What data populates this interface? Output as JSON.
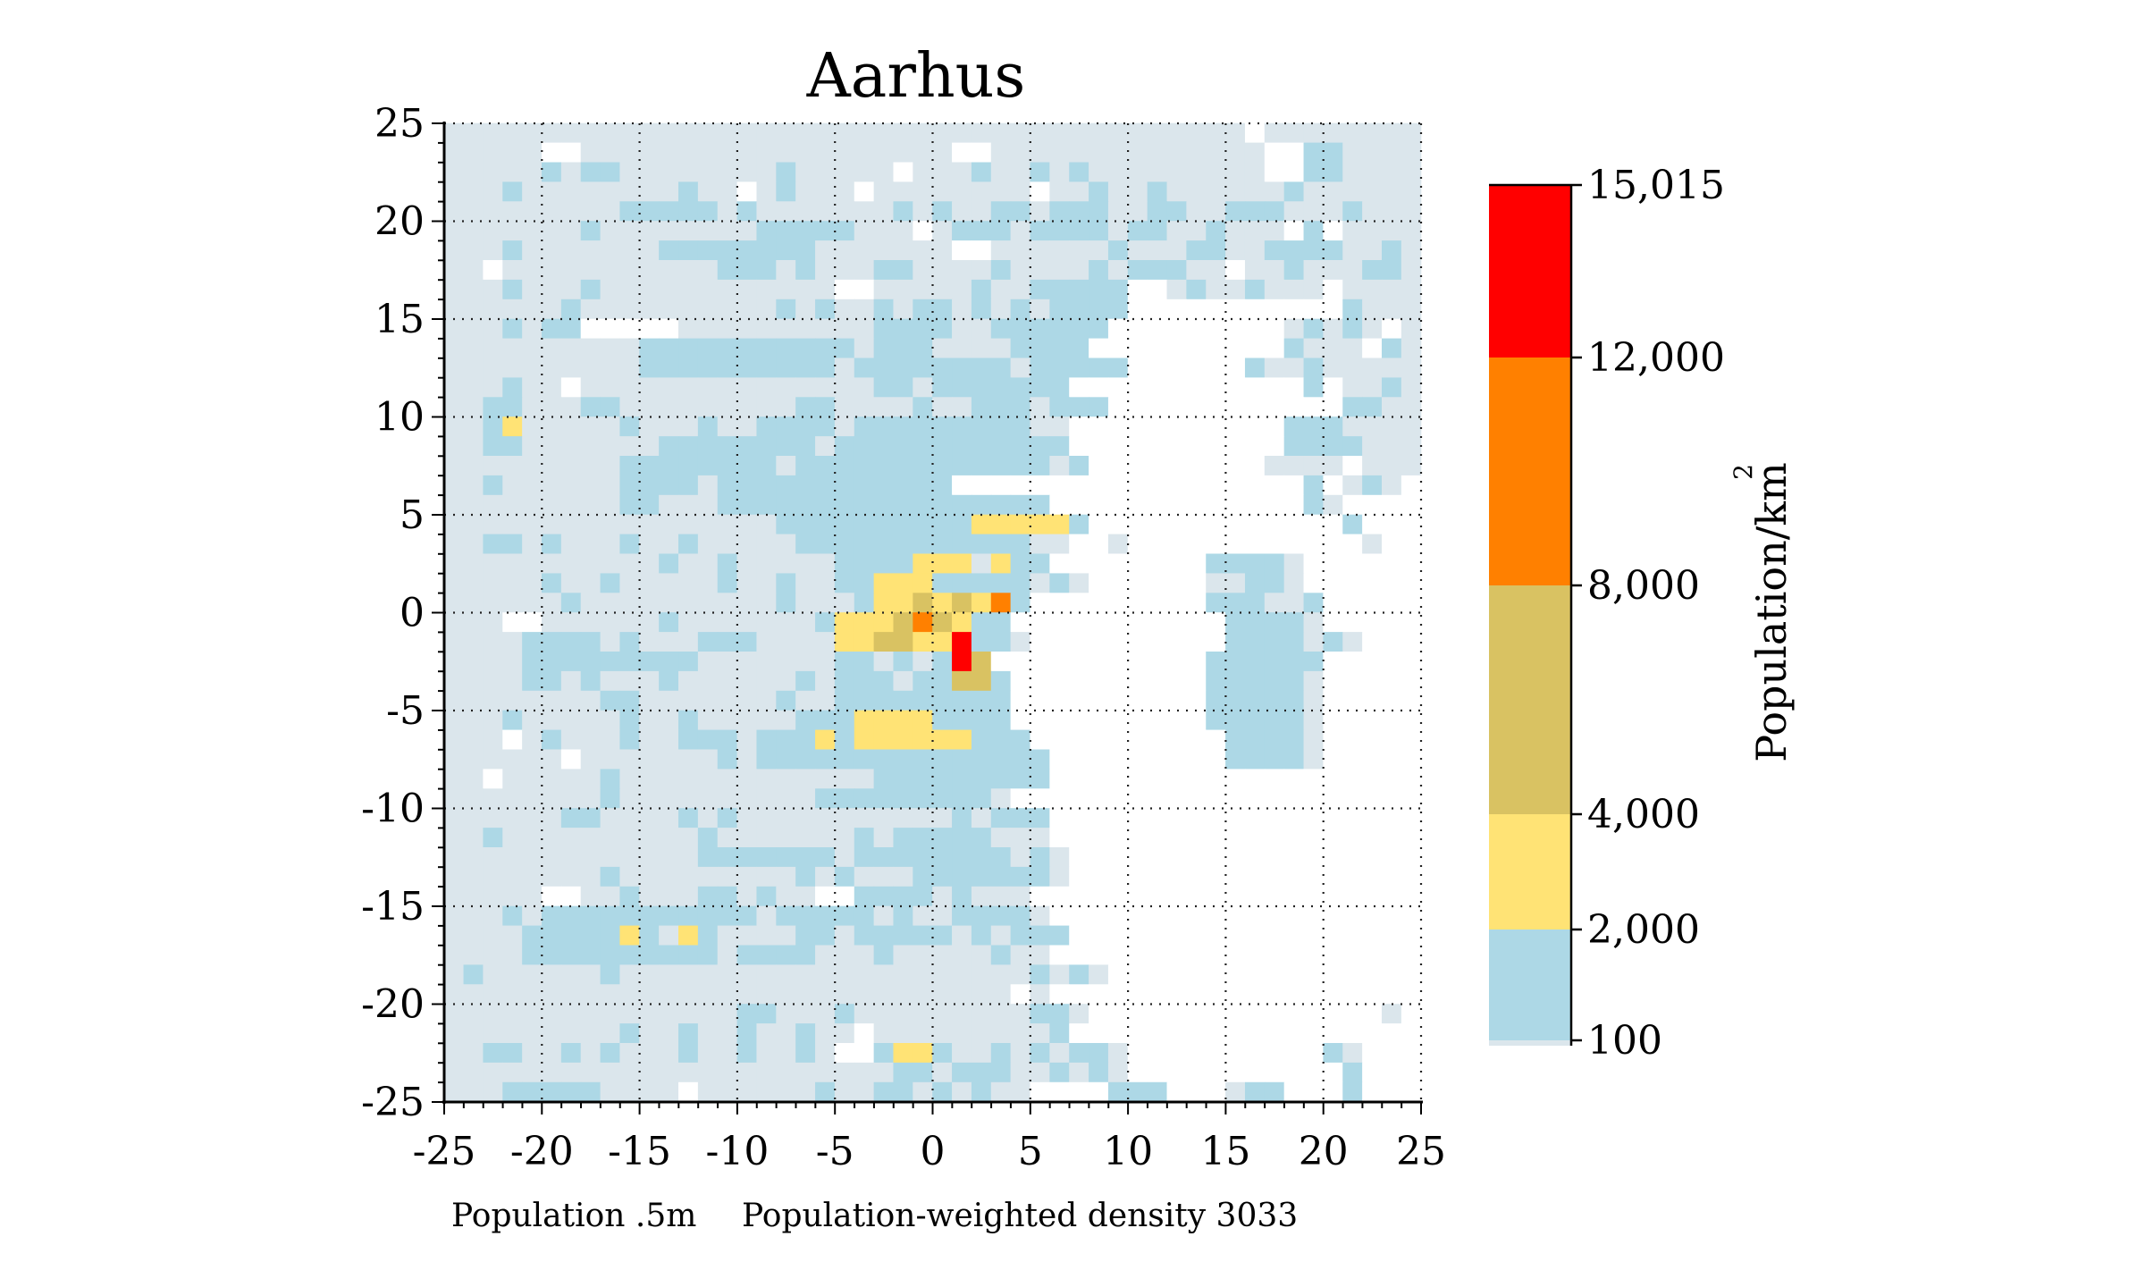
{
  "chart_data": {
    "type": "heatmap",
    "title": "Aarhus",
    "xlim": [
      -25,
      25
    ],
    "ylim": [
      -25,
      25
    ],
    "x_ticks": [
      "-25",
      "-20",
      "-15",
      "-10",
      "-5",
      "0",
      "5",
      "10",
      "15",
      "20",
      "25"
    ],
    "y_ticks": [
      "25",
      "20",
      "15",
      "10",
      "5",
      "0",
      "-5",
      "-10",
      "-15",
      "-20",
      "-25"
    ],
    "grid": "dotted",
    "cell_size_km": 1,
    "footnote_population": "Population .5m",
    "footnote_density": "Population-weighted density 3033",
    "colorbar": {
      "label": "Population/km",
      "label_superscript": "2",
      "tick_labels": [
        "15,015",
        "12,000",
        "8,000",
        "4,000",
        "2,000",
        "100"
      ],
      "bins": [
        {
          "from": 0,
          "to": 100,
          "color": "#dbe6ec"
        },
        {
          "from": 100,
          "to": 2000,
          "color": "#add8e6"
        },
        {
          "from": 2000,
          "to": 4000,
          "color": "#ffe375"
        },
        {
          "from": 4000,
          "to": 8000,
          "color": "#d9c262"
        },
        {
          "from": 8000,
          "to": 12000,
          "color": "#ff8000"
        },
        {
          "from": 12000,
          "to": 15015,
          "color": "#ff0000"
        }
      ]
    },
    "empty_color": "#ffffff",
    "cells": {
      "rows_from_y": 25,
      "cols_from_x": -25,
      "legend": {
        ".": "under 100",
        "b": "100-2,000",
        "y": "2,000-4,000",
        "t": "4,000-8,000",
        "o": "8,000-12,000",
        "r": "12,000-15,015",
        "_": "empty"
      },
      "grid": [
        "........................................._........",
        ".....__...................__..............__bb.....",
        ".....b.bb........b....._...b..b.b.........__bb.....",
        "...b........b.._.b..._........_..b..b......b.......",
        ".........bbbbb.b.......b.b..bb.bbb..bb..bbb...b....",
        ".......b........bbbbb..._.bbb.bbbb.bb..b..._b_.....",
        "...b.......bbbbbbbb.......__......b...bb..bbbb..b..",
        ".._...........bbb.b...bb....b....b.bbb.._..b...bb..",
        "...b...b............__.....b..bbbbb__.b..b..._.....",
        "......b..........b.b..b.bb.b.b.bbbb___________b...",
        "...b.bb_____..........bbbb..bbbbbb_________.b.b._..",
        "..........bbbbbbbbbbb.bbb....bbbb__________b..._b..",
        "..........bbbbbbbbbb.bbbbbbbb.bbbbb______b..b......",
        "...b.._...............bb.bbbbbbb____________b_..b..",
        "..bb...bb.........bb....b..bbb.bbb____________bb...",
        "..by.....b...b..bbbb.bbbbbbbbb..___________bbb.....",
        "..bb.......bbbbbbbb.bbbbbbbbbbbb___________bbbb....",
        ".........bbbbbbbb.bbbbbbbbbbbbb.b_________...._..._",
        "..b......bbbb.bbbbbbbbbbbb__________________b_.b.__",
        ".........bb...bbbbbbbbbbbbbbbbb_____________b._____",
        ".................bbbbbbbbbbyyyyyb_____________b____",
        "..bb.b...b..b.....bbbbbbbbbbbb..__.____________.___",
        "...........b..b.....bbbbyyy.ybb________bbbb._______",
        ".....b..b.....b..b..bbyyybbbbb.b.______..bb._______",
        "......b..........b...byytytyob_________bbb..b______",
        "...__......b.......byyytotybb___________bbbb.______",
        "....bbbb.b...bbb....yyttyyrbb.__________bbbb.b.____",
        "....bbbbbbbbb.......bb.b.brt___________bbbbbb______",
        "....bb.b...b......b.bbb.bbttb__________bbbbb.______",
        "........bb.......b..bbbbbbbbb__________bbbbb.______",
        "...b.....b..b.....bbbyyyybbbb__________bbbbb.______",
        "..._.b...b..bbb.bbbybyyyyyybbb__________bbbb.______",
        "......_.......b.bbbbbbbbbbbbbbb_________bbbb.______",
        ".._.....b.............bbbbbbbbb___________________",
        "........b..........bbbbbbbbb.___________________",
        "......bb....b.b...........b.bbb__________________",
        "..b..........b.......b.bbbbb...__________________",
        ".............bbbbbbb.bbbbbbbb.b.__________________",
        "........b.........b.b...bbbbbbb._________________",
        ".....__..b...bb.b..__bbbb.b...__________________",
        "...b.bbbbbbbbbbb.bbbbb.b..bbbb._________________",
        "....bbbbbyb.yb....bb.bbbbb.b.bbb_________________",
        "....bbbbbbbbbb.bbbb...b.....b..__________________",
        ".b......b.....................b.b.___________________",
        "............................._._________________",
        "...............bb...b.........bb._______________.__",
        ".........b..b..b..b.._.........b__________________",
        "..bb..b.b...b..b..b.__byyb..b.b.bb.__________b.____",
        ".......................bb.bbb..b.b.___________b____",
        "...bbbbb...._......b..bb.b.b..____bbb___.bb___b____",
        "..b..bbbb...........b...b...bbb______________._____",
        "..b.b...............b.........b.b________________"
      ]
    }
  }
}
